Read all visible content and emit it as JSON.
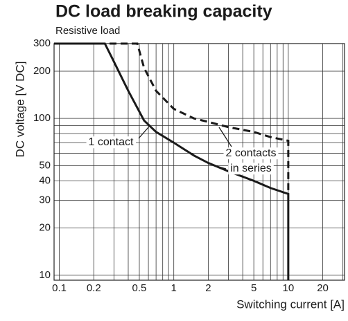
{
  "chart_data": {
    "type": "line",
    "title": "DC load breaking capacity",
    "subtitle": "Resistive load",
    "x_label": "Switching current [A]",
    "y_label": "DC voltage [V DC]",
    "log_x": true,
    "log_y": true,
    "grid": true,
    "xlim": [
      0.09,
      31
    ],
    "ylim": [
      9.3,
      300
    ],
    "xticks": [
      0.1,
      0.2,
      0.5,
      1,
      2,
      5,
      10,
      20
    ],
    "yticks": [
      10,
      20,
      30,
      40,
      50,
      100,
      200,
      300
    ],
    "xgrid": [
      0.1,
      0.2,
      0.3,
      0.4,
      0.5,
      0.6,
      0.7,
      0.8,
      0.9,
      1,
      2,
      3,
      4,
      5,
      6,
      7,
      8,
      9,
      10,
      20,
      30
    ],
    "ygrid": [
      10,
      20,
      30,
      40,
      50,
      60,
      70,
      80,
      90,
      100,
      200,
      300
    ],
    "series": [
      {
        "color": "#1a1a1a",
        "style": "solid",
        "x": [
          0.09,
          0.25,
          0.3,
          0.4,
          0.55,
          0.7,
          1,
          1.5,
          2,
          3,
          5,
          7,
          10,
          10
        ],
        "values": [
          300,
          300,
          230,
          150,
          97,
          82,
          70,
          58,
          52,
          46,
          40,
          36,
          33,
          9.3
        ]
      },
      {
        "color": "#1a1a1a",
        "style": "dashed",
        "x": [
          0.09,
          0.48,
          0.55,
          0.7,
          1,
          1.5,
          2,
          3,
          5,
          7,
          10,
          10
        ],
        "values": [
          300,
          300,
          210,
          150,
          115,
          100,
          95,
          88,
          82,
          76,
          72,
          33
        ]
      }
    ],
    "annotations": [
      "1 contact",
      "2 contacts",
      "in series"
    ]
  }
}
